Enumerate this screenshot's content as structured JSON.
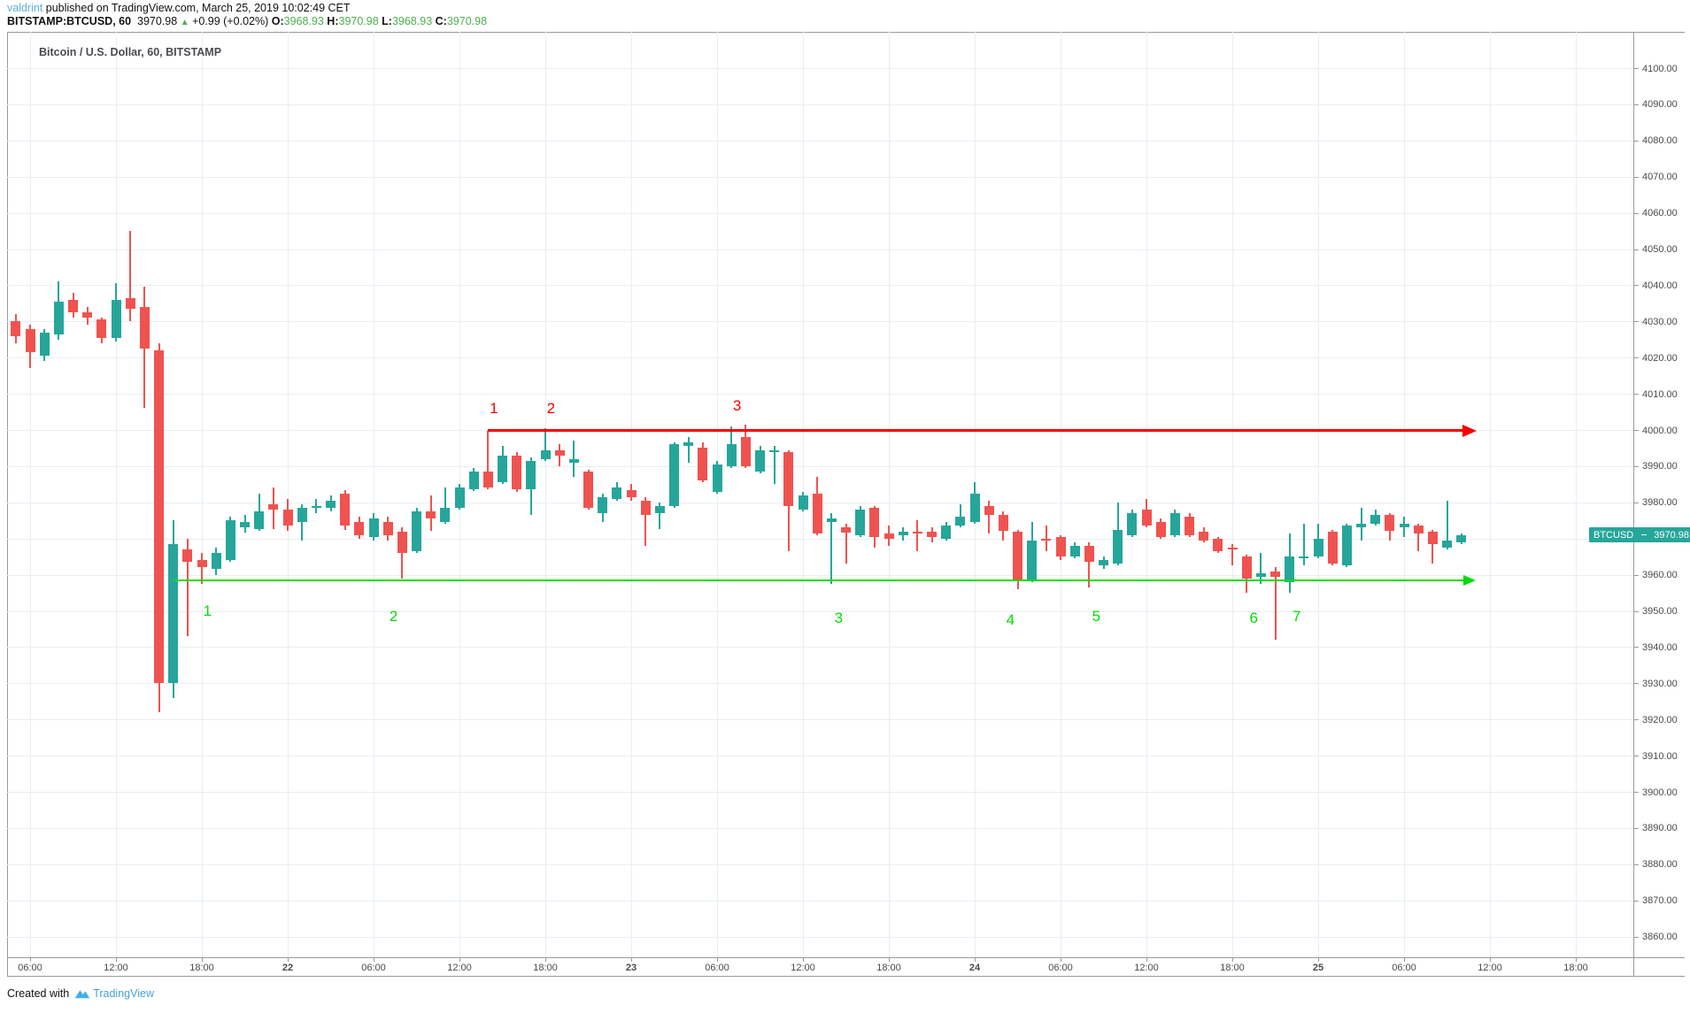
{
  "header": {
    "author": "valdrint",
    "published_text": " published on TradingView.com, March 25, 2019 10:02:49 CET",
    "symbol_text": "BITSTAMP:BTCUSD, 60",
    "last_price": "3970.98",
    "up_triangle": "▲",
    "change_text": "+0.99 (+0.02%)",
    "ohlc": [
      {
        "k": "O:",
        "v": "3968.93"
      },
      {
        "k": "H:",
        "v": "3970.98"
      },
      {
        "k": "L:",
        "v": "3968.93"
      },
      {
        "k": "C:",
        "v": "3970.98"
      }
    ]
  },
  "chart": {
    "title": "Bitcoin / U.S. Dollar, 60, BITSTAMP"
  },
  "footer": {
    "created_with": "Created with",
    "brand": "TradingView"
  },
  "price_tag": {
    "label": "BTCUSD",
    "value": "3970.98",
    "price": 3970.98
  },
  "colors": {
    "up": "#26a69a",
    "down": "#ef5350",
    "annotation_red": "#f70000",
    "annotation_green": "#00dd00",
    "grid": "#e9eef4",
    "frame": "#9a9a9a",
    "axis_text": "#4a4a4a",
    "link_blue": "#5fb0e0",
    "value_green": "#4caf50",
    "tv_blue": "#3bb2e4"
  },
  "chart_data": {
    "type": "candlestick",
    "title": "Bitcoin / U.S. Dollar, 60, BITSTAMP",
    "symbol": "BITSTAMP:BTCUSD",
    "interval": "60 (1 candle per hour, starting 2019-03-21 05:00)",
    "y_axis": {
      "min": 3860,
      "max": 4100,
      "step": 10,
      "grid": true
    },
    "x_axis": {
      "labels": [
        {
          "t": "06:00",
          "i": 1
        },
        {
          "t": "12:00",
          "i": 7
        },
        {
          "t": "18:00",
          "i": 13
        },
        {
          "t": "22",
          "i": 19,
          "day": true
        },
        {
          "t": "06:00",
          "i": 25
        },
        {
          "t": "12:00",
          "i": 31
        },
        {
          "t": "18:00",
          "i": 37
        },
        {
          "t": "23",
          "i": 43,
          "day": true
        },
        {
          "t": "06:00",
          "i": 49
        },
        {
          "t": "12:00",
          "i": 55
        },
        {
          "t": "18:00",
          "i": 61
        },
        {
          "t": "24",
          "i": 67,
          "day": true
        },
        {
          "t": "06:00",
          "i": 73
        },
        {
          "t": "12:00",
          "i": 79
        },
        {
          "t": "18:00",
          "i": 85
        },
        {
          "t": "25",
          "i": 91,
          "day": true
        },
        {
          "t": "06:00",
          "i": 97
        },
        {
          "t": "12:00",
          "i": 103
        },
        {
          "t": "18:00",
          "i": 109
        }
      ]
    },
    "candles": [
      [
        4030,
        4032,
        4024,
        4026
      ],
      [
        4028,
        4029,
        4017,
        4021.5
      ],
      [
        4020.5,
        4028,
        4019,
        4027
      ],
      [
        4026.5,
        4041,
        4025,
        4035.5
      ],
      [
        4036,
        4038,
        4031,
        4032.5
      ],
      [
        4032.5,
        4034,
        4029,
        4031
      ],
      [
        4030.5,
        4031,
        4024,
        4025.5
      ],
      [
        4025.5,
        4040.5,
        4024.5,
        4036
      ],
      [
        4036.5,
        4055,
        4030,
        4033.5
      ],
      [
        4034,
        4039.5,
        4006,
        4022.5
      ],
      [
        4022,
        4024,
        3922,
        3930
      ],
      [
        3930,
        3975,
        3926,
        3968.5
      ],
      [
        3967,
        3970,
        3943,
        3963.5
      ],
      [
        3964,
        3966,
        3957.5,
        3962
      ],
      [
        3961.5,
        3967.5,
        3960,
        3966
      ],
      [
        3964,
        3976,
        3963.5,
        3975
      ],
      [
        3973,
        3976.5,
        3971.5,
        3974.5
      ],
      [
        3972.5,
        3982.5,
        3972,
        3977.5
      ],
      [
        3979.5,
        3984,
        3972.5,
        3978
      ],
      [
        3978,
        3981,
        3972,
        3973.5
      ],
      [
        3974.5,
        3979.5,
        3969.5,
        3978.5
      ],
      [
        3978.5,
        3981,
        3977,
        3979
      ],
      [
        3978.5,
        3982,
        3977.5,
        3980.5
      ],
      [
        3982.5,
        3983.5,
        3972.5,
        3973.5
      ],
      [
        3974.5,
        3976,
        3970,
        3971
      ],
      [
        3970.5,
        3977,
        3969.5,
        3975.5
      ],
      [
        3974.5,
        3976,
        3969.5,
        3971
      ],
      [
        3972,
        3973,
        3959,
        3966
      ],
      [
        3966.5,
        3978.5,
        3966,
        3977.5
      ],
      [
        3977.5,
        3982,
        3972,
        3975.5
      ],
      [
        3974.5,
        3984,
        3974,
        3978.5
      ],
      [
        3978.5,
        3985,
        3978,
        3984
      ],
      [
        3983.5,
        3989.5,
        3983,
        3988.5
      ],
      [
        3988.5,
        3999.8,
        3983.5,
        3984
      ],
      [
        3985.5,
        3995.5,
        3985,
        3993
      ],
      [
        3993,
        3994,
        3983,
        3983.5
      ],
      [
        3983.5,
        3992.5,
        3976.5,
        3991.5
      ],
      [
        3992,
        4000.5,
        3991.5,
        3994.5
      ],
      [
        3994.5,
        3996,
        3990,
        3993
      ],
      [
        3991,
        3997,
        3987,
        3992
      ],
      [
        3988.5,
        3989,
        3978,
        3978.5
      ],
      [
        3977,
        3982.5,
        3974.5,
        3981.5
      ],
      [
        3981,
        3985.5,
        3980.5,
        3984
      ],
      [
        3983.5,
        3985,
        3980.5,
        3981.5
      ],
      [
        3980.5,
        3981.5,
        3968,
        3976.5
      ],
      [
        3977,
        3980,
        3972.5,
        3979
      ],
      [
        3979,
        3996.5,
        3978.5,
        3996
      ],
      [
        3995.5,
        3998,
        3991,
        3996.5
      ],
      [
        3995,
        3996.5,
        3985.5,
        3986
      ],
      [
        3983,
        3991.5,
        3982.5,
        3990.5
      ],
      [
        3990,
        4001,
        3989.5,
        3996
      ],
      [
        3998,
        4001.5,
        3989.5,
        3990
      ],
      [
        3988.5,
        3995.5,
        3988,
        3994.5
      ],
      [
        3994,
        3995.5,
        3985,
        3994.5
      ],
      [
        3994,
        3994.5,
        3966.5,
        3979
      ],
      [
        3978,
        3983,
        3977.5,
        3982
      ],
      [
        3982.5,
        3987,
        3971,
        3971.5
      ],
      [
        3974.5,
        3977,
        3957.5,
        3975.5
      ],
      [
        3973,
        3974,
        3963,
        3971.5
      ],
      [
        3971,
        3979,
        3970.5,
        3978
      ],
      [
        3978.5,
        3979,
        3967.5,
        3970.5
      ],
      [
        3971.5,
        3973.5,
        3968,
        3970
      ],
      [
        3971,
        3973,
        3969.5,
        3972
      ],
      [
        3972,
        3975,
        3966.5,
        3971.5
      ],
      [
        3972,
        3973,
        3969,
        3970.5
      ],
      [
        3970,
        3974.5,
        3969.5,
        3973.5
      ],
      [
        3973.5,
        3979.5,
        3973,
        3976
      ],
      [
        3974.5,
        3985.5,
        3974,
        3982.5
      ],
      [
        3979,
        3980.5,
        3971.5,
        3976.5
      ],
      [
        3976.5,
        3977.5,
        3969.5,
        3972
      ],
      [
        3972,
        3972.5,
        3956,
        3958.5
      ],
      [
        3958.5,
        3974.5,
        3958,
        3969.5
      ],
      [
        3970,
        3973.5,
        3966.5,
        3969.5
      ],
      [
        3970.5,
        3971,
        3964,
        3965
      ],
      [
        3965,
        3969,
        3964.5,
        3968
      ],
      [
        3968,
        3969,
        3956.5,
        3963.5
      ],
      [
        3962.5,
        3965,
        3961.5,
        3964
      ],
      [
        3963,
        3980,
        3962.5,
        3972.5
      ],
      [
        3971,
        3978,
        3970.5,
        3977
      ],
      [
        3978,
        3981,
        3973,
        3973.5
      ],
      [
        3974.5,
        3975.5,
        3970,
        3970.5
      ],
      [
        3971,
        3978,
        3970.5,
        3977
      ],
      [
        3976,
        3977,
        3970.5,
        3971
      ],
      [
        3972,
        3973,
        3969,
        3969.5
      ],
      [
        3970,
        3970.5,
        3966,
        3966.5
      ],
      [
        3967.5,
        3968.5,
        3962.5,
        3967
      ],
      [
        3965,
        3965.5,
        3955,
        3959
      ],
      [
        3959.5,
        3966,
        3957.5,
        3960.5
      ],
      [
        3961,
        3962,
        3942,
        3959.5
      ],
      [
        3958,
        3971.5,
        3955,
        3965
      ],
      [
        3964.5,
        3974,
        3962.5,
        3965
      ],
      [
        3965,
        3974,
        3964.5,
        3970
      ],
      [
        3972,
        3972.5,
        3962.5,
        3963
      ],
      [
        3962.5,
        3974,
        3962,
        3973.5
      ],
      [
        3973,
        3978.5,
        3969.5,
        3974
      ],
      [
        3974,
        3978,
        3973.5,
        3976.5
      ],
      [
        3976.5,
        3977,
        3969.5,
        3972
      ],
      [
        3973,
        3976,
        3970.5,
        3974
      ],
      [
        3973.5,
        3974,
        3966.5,
        3971.5
      ],
      [
        3972,
        3972.5,
        3963,
        3968.5
      ],
      [
        3967.5,
        3980.5,
        3967,
        3969.5
      ],
      [
        3969,
        3971.5,
        3968.5,
        3971
      ]
    ],
    "annotations": {
      "resistance": {
        "color": "red",
        "price": 3999.8,
        "from_i": 33,
        "to_i": 102.1,
        "numbers": [
          {
            "n": "1",
            "i": 33.4,
            "price": 4006
          },
          {
            "n": "2",
            "i": 37.4,
            "price": 4006
          },
          {
            "n": "3",
            "i": 50.4,
            "price": 4006.5
          }
        ]
      },
      "support": {
        "color": "green",
        "price": 3958.5,
        "from_i": 11,
        "to_i": 102,
        "numbers": [
          {
            "n": "1",
            "i": 13.4,
            "price": 3950
          },
          {
            "n": "2",
            "i": 26.4,
            "price": 3948.5
          },
          {
            "n": "3",
            "i": 57.5,
            "price": 3948
          },
          {
            "n": "4",
            "i": 69.5,
            "price": 3947.5
          },
          {
            "n": "5",
            "i": 75.5,
            "price": 3948.5
          },
          {
            "n": "6",
            "i": 86.5,
            "price": 3948
          },
          {
            "n": "7",
            "i": 89.5,
            "price": 3948.5
          }
        ]
      }
    }
  }
}
